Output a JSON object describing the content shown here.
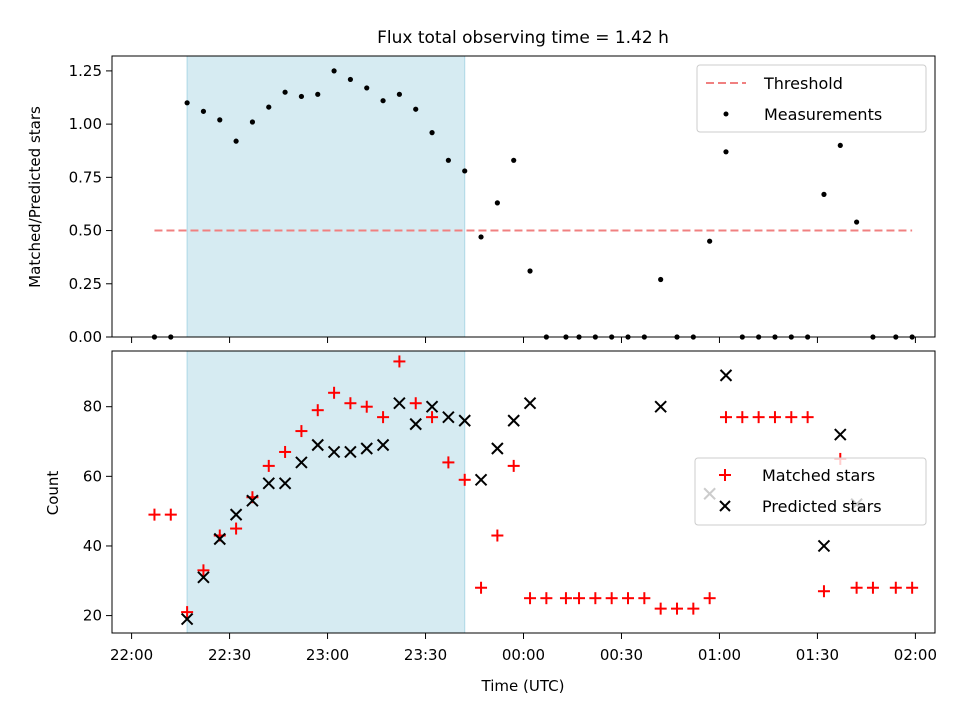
{
  "chart_data": [
    {
      "type": "scatter",
      "title": "Flux total observing time = 1.42 h",
      "xlabel": "",
      "ylabel": "Matched/Predicted stars",
      "xlim": [
        "21:54",
        "02:06"
      ],
      "ylim": [
        0,
        1.32
      ],
      "yticks": [
        0.0,
        0.25,
        0.5,
        0.75,
        1.0,
        1.25
      ],
      "ytick_labels": [
        "0.00",
        "0.25",
        "0.50",
        "0.75",
        "1.00",
        "1.25"
      ],
      "shaded_interval": [
        "22:17",
        "23:42"
      ],
      "shaded_color": "#add8e6",
      "legend_position": "top-right",
      "threshold": {
        "name": "Threshold",
        "y": 0.5,
        "x": [
          "22:07",
          "01:59"
        ],
        "color": "#f08080"
      },
      "series": [
        {
          "name": "Measurements",
          "marker": "dot",
          "color": "#000000",
          "points": [
            [
              "22:07",
              0.0
            ],
            [
              "22:12",
              0.0
            ],
            [
              "22:17",
              1.1
            ],
            [
              "22:22",
              1.06
            ],
            [
              "22:27",
              1.02
            ],
            [
              "22:32",
              0.92
            ],
            [
              "22:37",
              1.01
            ],
            [
              "22:42",
              1.08
            ],
            [
              "22:47",
              1.15
            ],
            [
              "22:52",
              1.13
            ],
            [
              "22:57",
              1.14
            ],
            [
              "23:02",
              1.25
            ],
            [
              "23:07",
              1.21
            ],
            [
              "23:12",
              1.17
            ],
            [
              "23:17",
              1.11
            ],
            [
              "23:22",
              1.14
            ],
            [
              "23:27",
              1.07
            ],
            [
              "23:32",
              0.96
            ],
            [
              "23:37",
              0.83
            ],
            [
              "23:42",
              0.78
            ],
            [
              "23:47",
              0.47
            ],
            [
              "23:52",
              0.63
            ],
            [
              "23:57",
              0.83
            ],
            [
              "00:02",
              0.31
            ],
            [
              "00:07",
              0.0
            ],
            [
              "00:13",
              0.0
            ],
            [
              "00:17",
              0.0
            ],
            [
              "00:22",
              0.0
            ],
            [
              "00:27",
              0.0
            ],
            [
              "00:32",
              0.0
            ],
            [
              "00:37",
              0.0
            ],
            [
              "00:42",
              0.27
            ],
            [
              "00:47",
              0.0
            ],
            [
              "00:52",
              0.0
            ],
            [
              "00:57",
              0.45
            ],
            [
              "01:02",
              0.87
            ],
            [
              "01:07",
              0.0
            ],
            [
              "01:12",
              0.0
            ],
            [
              "01:17",
              0.0
            ],
            [
              "01:22",
              0.0
            ],
            [
              "01:27",
              0.0
            ],
            [
              "01:32",
              0.67
            ],
            [
              "01:37",
              0.9
            ],
            [
              "01:42",
              0.54
            ],
            [
              "01:47",
              0.0
            ],
            [
              "01:54",
              0.0
            ],
            [
              "01:59",
              0.0
            ]
          ]
        }
      ]
    },
    {
      "type": "scatter",
      "title": "",
      "xlabel": "Time (UTC)",
      "ylabel": "Count",
      "xlim": [
        "21:54",
        "02:06"
      ],
      "xticks": [
        "22:00",
        "22:30",
        "23:00",
        "23:30",
        "00:00",
        "00:30",
        "01:00",
        "01:30",
        "02:00"
      ],
      "ylim": [
        15,
        96
      ],
      "yticks": [
        20,
        40,
        60,
        80
      ],
      "shaded_interval": [
        "22:17",
        "23:42"
      ],
      "shaded_color": "#add8e6",
      "legend_position": "center-right",
      "series": [
        {
          "name": "Matched stars",
          "marker": "plus",
          "color": "#ff0000",
          "points": [
            [
              "22:07",
              49
            ],
            [
              "22:12",
              49
            ],
            [
              "22:17",
              21
            ],
            [
              "22:22",
              33
            ],
            [
              "22:27",
              43
            ],
            [
              "22:32",
              45
            ],
            [
              "22:37",
              54
            ],
            [
              "22:42",
              63
            ],
            [
              "22:47",
              67
            ],
            [
              "22:52",
              73
            ],
            [
              "22:57",
              79
            ],
            [
              "23:02",
              84
            ],
            [
              "23:07",
              81
            ],
            [
              "23:12",
              80
            ],
            [
              "23:17",
              77
            ],
            [
              "23:22",
              93
            ],
            [
              "23:27",
              81
            ],
            [
              "23:32",
              77
            ],
            [
              "23:37",
              64
            ],
            [
              "23:42",
              59
            ],
            [
              "23:47",
              28
            ],
            [
              "23:52",
              43
            ],
            [
              "23:57",
              63
            ],
            [
              "00:02",
              25
            ],
            [
              "00:07",
              25
            ],
            [
              "00:13",
              25
            ],
            [
              "00:17",
              25
            ],
            [
              "00:22",
              25
            ],
            [
              "00:27",
              25
            ],
            [
              "00:32",
              25
            ],
            [
              "00:37",
              25
            ],
            [
              "00:42",
              22
            ],
            [
              "00:47",
              22
            ],
            [
              "00:52",
              22
            ],
            [
              "00:57",
              25
            ],
            [
              "01:02",
              77
            ],
            [
              "01:07",
              77
            ],
            [
              "01:12",
              77
            ],
            [
              "01:17",
              77
            ],
            [
              "01:22",
              77
            ],
            [
              "01:27",
              77
            ],
            [
              "01:32",
              27
            ],
            [
              "01:37",
              65
            ],
            [
              "01:42",
              28
            ],
            [
              "01:47",
              28
            ],
            [
              "01:54",
              28
            ],
            [
              "01:59",
              28
            ]
          ]
        },
        {
          "name": "Predicted stars",
          "marker": "x",
          "color": "#000000",
          "points": [
            [
              "22:17",
              19
            ],
            [
              "22:22",
              31
            ],
            [
              "22:27",
              42
            ],
            [
              "22:32",
              49
            ],
            [
              "22:37",
              53
            ],
            [
              "22:42",
              58
            ],
            [
              "22:47",
              58
            ],
            [
              "22:52",
              64
            ],
            [
              "22:57",
              69
            ],
            [
              "23:02",
              67
            ],
            [
              "23:07",
              67
            ],
            [
              "23:12",
              68
            ],
            [
              "23:17",
              69
            ],
            [
              "23:22",
              81
            ],
            [
              "23:27",
              75
            ],
            [
              "23:32",
              80
            ],
            [
              "23:37",
              77
            ],
            [
              "23:42",
              76
            ],
            [
              "23:47",
              59
            ],
            [
              "23:52",
              68
            ],
            [
              "23:57",
              76
            ],
            [
              "00:02",
              81
            ],
            [
              "00:42",
              80
            ],
            [
              "00:57",
              55
            ],
            [
              "01:02",
              89
            ],
            [
              "01:32",
              40
            ],
            [
              "01:37",
              72
            ],
            [
              "01:42",
              52
            ]
          ]
        }
      ]
    }
  ]
}
